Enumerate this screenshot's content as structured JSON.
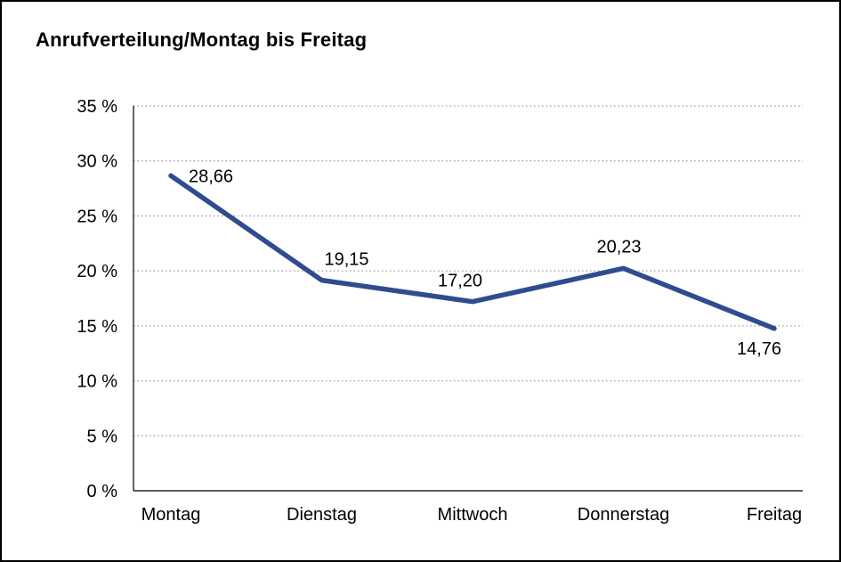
{
  "chart_data": {
    "type": "line",
    "title": "Anrufverteilung/Montag bis Freitag",
    "categories": [
      "Montag",
      "Dienstag",
      "Mittwoch",
      "Donnerstag",
      "Freitag"
    ],
    "values": [
      28.66,
      19.15,
      17.2,
      20.23,
      14.76
    ],
    "value_labels": [
      "28,66",
      "19,15",
      "17,20",
      "20,23",
      "14,76"
    ],
    "xlabel": "",
    "ylabel": "",
    "ylim": [
      0,
      35
    ],
    "yticks": [
      0,
      5,
      10,
      15,
      20,
      25,
      30,
      35
    ],
    "ytick_labels": [
      "0 %",
      "5 %",
      "10 %",
      "15 %",
      "20 %",
      "25 %",
      "30 %",
      "35 %"
    ],
    "grid": "dotted-horizontal",
    "legend": "none",
    "line_color": "#2E4C8F",
    "gridline_color": "#7f7f7f",
    "axis_color": "#000000",
    "label_color": "#000000"
  }
}
